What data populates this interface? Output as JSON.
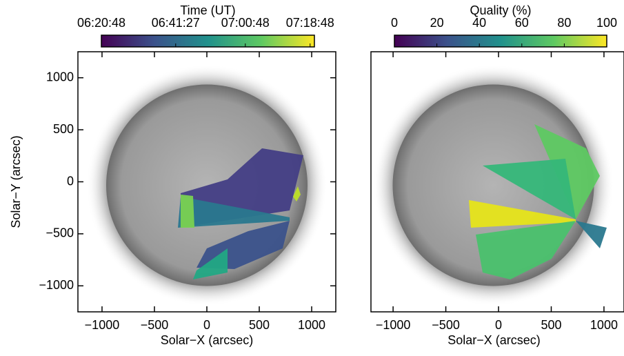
{
  "chart_data": [
    {
      "type": "image",
      "xlabel": "Solar−X (arcsec)",
      "ylabel": "Solar−Y (arcsec)",
      "xlim": [
        -1230,
        1230
      ],
      "ylim": [
        -1250,
        1250
      ],
      "xticks": [
        {
          "value": -1000,
          "label": "−1000"
        },
        {
          "value": -500,
          "label": "−500"
        },
        0,
        500,
        1000
      ],
      "yticks": [
        {
          "value": -1000,
          "label": "−1000"
        },
        {
          "value": -500,
          "label": "−500"
        },
        0,
        500,
        1000
      ],
      "colorbar": {
        "label": "Time (UT)",
        "lim": [
          22848,
          26400
        ],
        "ticks": [
          {
            "value": 22848,
            "label": "06:20:48"
          },
          {
            "value": 24087,
            "label": "06:41:27"
          },
          {
            "value": 25248,
            "label": "07:00:48"
          },
          {
            "value": 26328,
            "label": "07:18:48"
          }
        ],
        "colors": [
          "#440154",
          "#3b528b",
          "#21918c",
          "#5ec962",
          "#fde725"
        ]
      }
    },
    {
      "type": "image",
      "xlabel": "Solar−X (arcsec)",
      "xlim": [
        -1210,
        1190
      ],
      "ylim": [
        -1250,
        1250
      ],
      "xticks": [
        {
          "value": -1000,
          "label": "−1000"
        },
        {
          "value": -500,
          "label": "−500"
        },
        0,
        500,
        1000
      ],
      "colorbar": {
        "label": "Quality (%)",
        "lim": [
          0,
          100
        ],
        "ticks": [
          0,
          20,
          40,
          60,
          80,
          100
        ],
        "colors": [
          "#440154",
          "#3b528b",
          "#21918c",
          "#5ec962",
          "#fde725"
        ]
      }
    }
  ]
}
